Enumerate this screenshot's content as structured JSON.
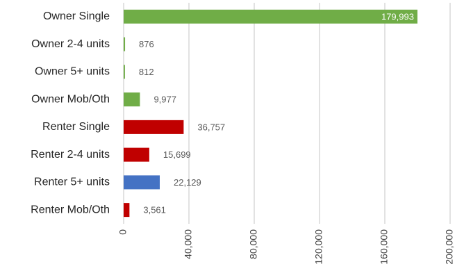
{
  "chart_data": {
    "type": "barh",
    "categories": [
      "Owner Single",
      "Owner 2-4 units",
      "Owner 5+ units",
      "Owner Mob/Oth",
      "Renter Single",
      "Renter 2-4 units",
      "Renter 5+ units",
      "Renter Mob/Oth"
    ],
    "values": [
      179993,
      876,
      812,
      9977,
      36757,
      15699,
      22129,
      3561
    ],
    "value_labels": [
      "179,993",
      "876",
      "812",
      "9,977",
      "36,757",
      "15,699",
      "22,129",
      "3,561"
    ],
    "colors": [
      "#70ad47",
      "#70ad47",
      "#70ad47",
      "#70ad47",
      "#c00000",
      "#c00000",
      "#4472c4",
      "#c00000"
    ],
    "xlim": [
      0,
      200000
    ],
    "xticks": [
      0,
      {
        "value": 40000,
        "label": "40,000"
      },
      {
        "value": 80000,
        "label": "80,000"
      },
      {
        "value": 120000,
        "label": "120,000"
      },
      {
        "value": 160000,
        "label": "160,000"
      },
      {
        "value": 200000,
        "label": "200,000"
      }
    ],
    "grid": true
  }
}
